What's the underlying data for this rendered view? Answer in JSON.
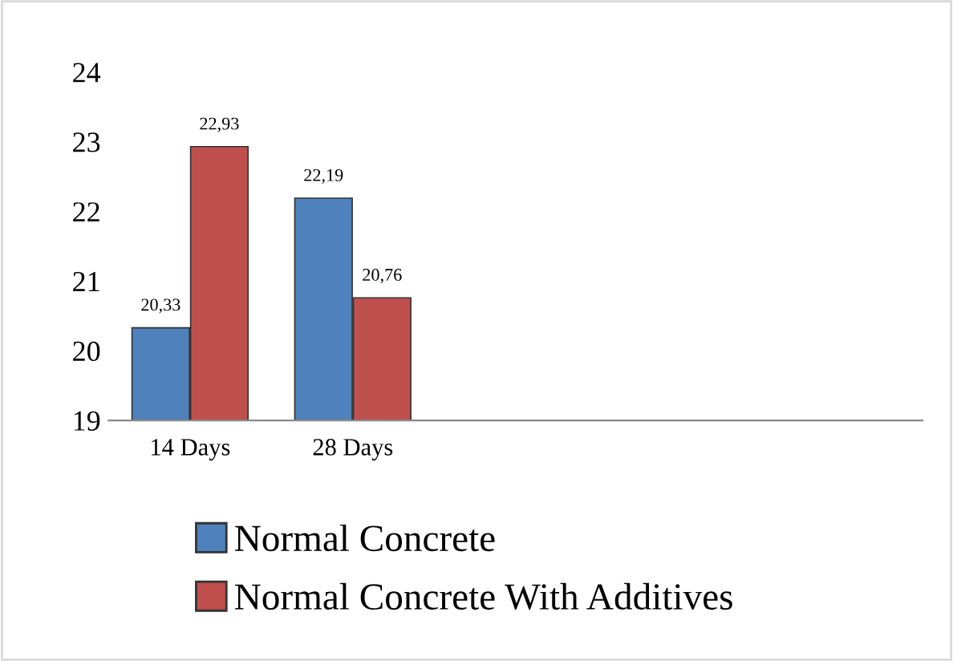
{
  "chart_data": {
    "type": "bar",
    "categories": [
      "14 Days",
      "28 Days"
    ],
    "series": [
      {
        "name": "Normal Concrete",
        "color": "#4f81bd",
        "values": [
          20.33,
          22.19
        ],
        "value_labels": [
          "20,33",
          "22,19"
        ]
      },
      {
        "name": "Normal Concrete With Additives",
        "color": "#c0504d",
        "values": [
          22.93,
          20.76
        ],
        "value_labels": [
          "22,93",
          "20,76"
        ]
      }
    ],
    "ylim": [
      19,
      24
    ],
    "yticks": [
      19,
      20,
      21,
      22,
      23,
      24
    ],
    "grid": false,
    "legend": "bottom"
  }
}
